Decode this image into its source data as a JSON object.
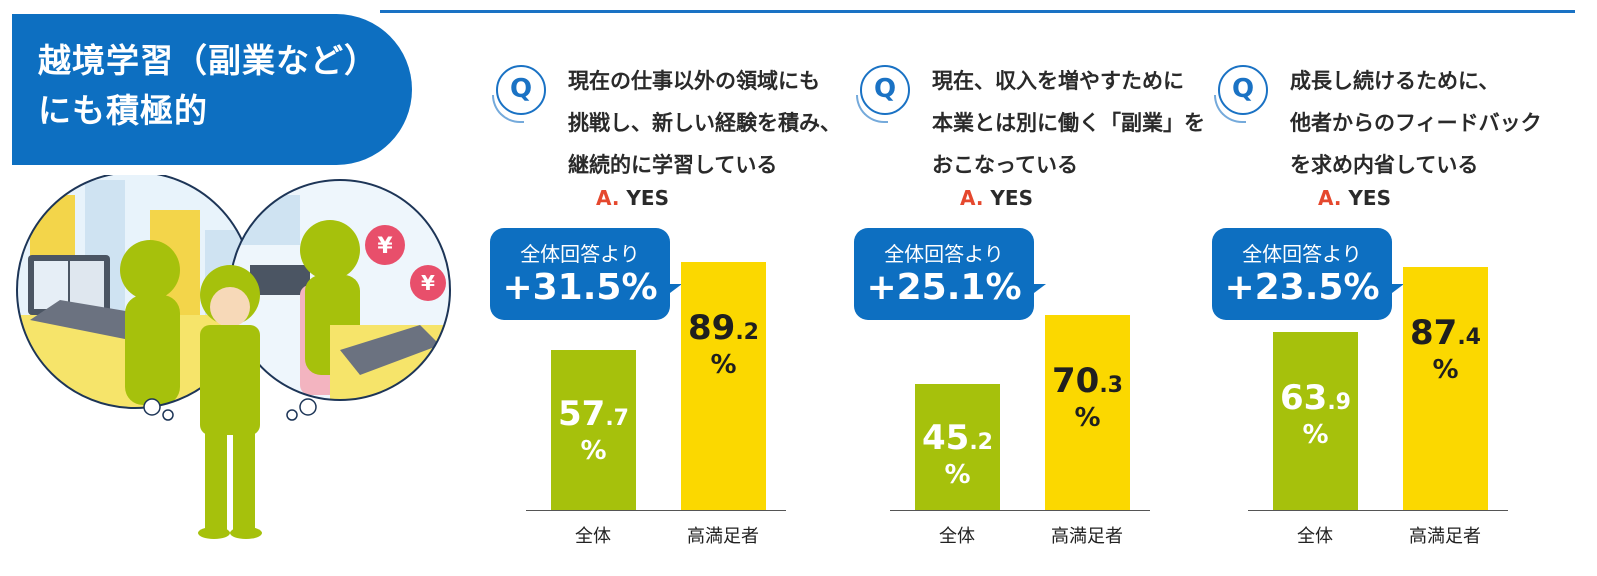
{
  "header": {
    "title_lines": [
      "越境学習（副業など）",
      "にも積極的"
    ]
  },
  "colors": {
    "blue": "#0d6fc1",
    "green": "#a6c10c",
    "yellow": "#fbd800",
    "accent": "#e5482e"
  },
  "panels": [
    {
      "q_mark": "Q",
      "question_lines": [
        "現在の仕事以外の領域にも",
        "挑戦し、新しい経験を積み、",
        "継続的に学習している"
      ],
      "answer_prefix": "A.",
      "answer_text": "YES",
      "callout_text": "全体回答より",
      "callout_value": "+31.5%"
    },
    {
      "q_mark": "Q",
      "question_lines": [
        "現在、収入を増やすために",
        "本業とは別に働く「副業」を",
        "おこなっている"
      ],
      "answer_prefix": "A.",
      "answer_text": "YES",
      "callout_text": "全体回答より",
      "callout_value": "+25.1%"
    },
    {
      "q_mark": "Q",
      "question_lines": [
        "成長し続けるために、",
        "他者からのフィードバック",
        "を求め内省している"
      ],
      "answer_prefix": "A.",
      "answer_text": "YES",
      "callout_text": "全体回答より",
      "callout_value": "+23.5%"
    }
  ],
  "chart_data": [
    {
      "type": "bar",
      "categories": [
        "全体",
        "高満足者"
      ],
      "values": [
        57.7,
        89.2
      ],
      "unit": "%",
      "ylim": [
        0,
        100
      ]
    },
    {
      "type": "bar",
      "categories": [
        "全体",
        "高満足者"
      ],
      "values": [
        45.2,
        70.3
      ],
      "unit": "%",
      "ylim": [
        0,
        100
      ]
    },
    {
      "type": "bar",
      "categories": [
        "全体",
        "高満足者"
      ],
      "values": [
        63.9,
        87.4
      ],
      "unit": "%",
      "ylim": [
        0,
        100
      ]
    }
  ]
}
